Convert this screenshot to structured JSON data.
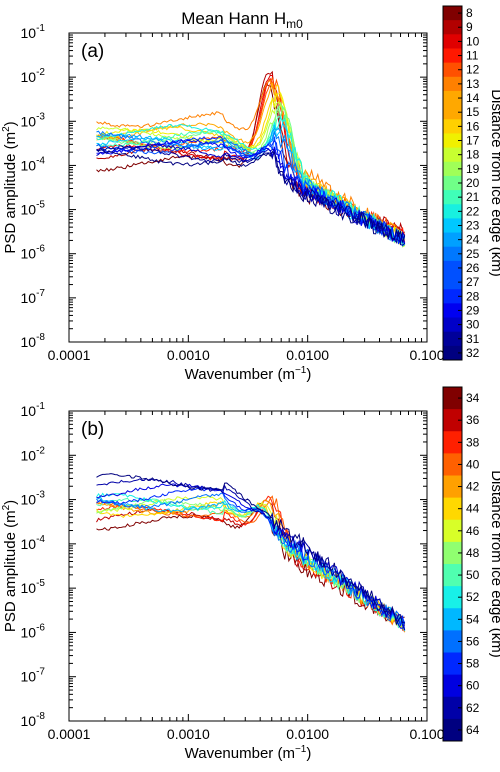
{
  "figure": {
    "title": "Mean Hann H",
    "title_sub": "m0"
  },
  "chart_data": [
    {
      "type": "line",
      "panel_label": "(a)",
      "xscale": "log",
      "yscale": "log",
      "xlim": [
        0.0001,
        0.1
      ],
      "ylim": [
        1e-08,
        0.1
      ],
      "xticks": [
        0.0001,
        0.001,
        0.01,
        0.1
      ],
      "xtick_labels": [
        "0.0001",
        "0.0010",
        "0.0100",
        "0.100"
      ],
      "yticks": [
        1e-08,
        1e-07,
        1e-06,
        1e-05,
        0.0001,
        0.001,
        0.01,
        0.1
      ],
      "ytick_labels": [
        {
          "base": "10",
          "exp": "-8"
        },
        {
          "base": "10",
          "exp": "-7"
        },
        {
          "base": "10",
          "exp": "-6"
        },
        {
          "base": "10",
          "exp": "-5"
        },
        {
          "base": "10",
          "exp": "-4"
        },
        {
          "base": "10",
          "exp": "-3"
        },
        {
          "base": "10",
          "exp": "-2"
        },
        {
          "base": "10",
          "exp": "-1"
        }
      ],
      "xlabel": "Wavenumber (m",
      "xlabel_exp": "−1",
      "xlabel_tail": ")",
      "ylabel": "PSD amplitude (m",
      "ylabel_exp": "2",
      "ylabel_tail": ")",
      "x_start": 0.00017,
      "x_end": 0.065,
      "colorbar": {
        "label": "Distance from ice edge (km)",
        "colormap": "jet",
        "ticks": [
          "8",
          "9",
          "10",
          "11",
          "12",
          "13",
          "14",
          "15",
          "16",
          "17",
          "18",
          "19",
          "20",
          "21",
          "22",
          "23",
          "24",
          "25",
          "26",
          "27",
          "28",
          "29",
          "30",
          "31",
          "32"
        ]
      },
      "series": [
        {
          "distance_km": 8,
          "color": "#800000",
          "lf": 0.00011,
          "bump": 0.007,
          "pk": 0.0046,
          "tail": 3e-06
        },
        {
          "distance_km": 9,
          "color": "#b20000",
          "lf": 0.00016,
          "bump": 0.012,
          "pk": 0.0047,
          "tail": 3e-06
        },
        {
          "distance_km": 10,
          "color": "#e00000",
          "lf": 0.0002,
          "bump": 0.011,
          "pk": 0.0049,
          "tail": 2.5e-06
        },
        {
          "distance_km": 11,
          "color": "#ff1800",
          "lf": 0.0003,
          "bump": 0.01,
          "pk": 0.005,
          "tail": 2.5e-06
        },
        {
          "distance_km": 12,
          "color": "#ff5000",
          "lf": 0.0004,
          "bump": 0.0085,
          "pk": 0.0051,
          "tail": 2.5e-06
        },
        {
          "distance_km": 13,
          "color": "#ff8000",
          "lf": 0.0011,
          "bump": 0.008,
          "pk": 0.0048,
          "tail": 2.2e-06
        },
        {
          "distance_km": 14,
          "color": "#ffa800",
          "lf": 0.0006,
          "bump": 0.006,
          "pk": 0.0052,
          "tail": 2.2e-06
        },
        {
          "distance_km": 15,
          "color": "#ffd000",
          "lf": 0.0005,
          "bump": 0.0045,
          "pk": 0.0055,
          "tail": 2e-06
        },
        {
          "distance_km": 16,
          "color": "#f0f000",
          "lf": 0.00045,
          "bump": 0.0035,
          "pk": 0.0056,
          "tail": 2e-06
        },
        {
          "distance_km": 17,
          "color": "#c8ff30",
          "lf": 0.0005,
          "bump": 0.0028,
          "pk": 0.0057,
          "tail": 2e-06
        },
        {
          "distance_km": 18,
          "color": "#a0ff58",
          "lf": 0.00035,
          "bump": 0.0022,
          "pk": 0.0058,
          "tail": 2e-06
        },
        {
          "distance_km": 19,
          "color": "#70ff88",
          "lf": 0.00045,
          "bump": 0.0016,
          "pk": 0.006,
          "tail": 2e-06
        },
        {
          "distance_km": 20,
          "color": "#40ffb8",
          "lf": 0.0004,
          "bump": 0.0012,
          "pk": 0.006,
          "tail": 2e-06
        },
        {
          "distance_km": 21,
          "color": "#18f0e0",
          "lf": 0.00055,
          "bump": 0.0009,
          "pk": 0.006,
          "tail": 2e-06
        },
        {
          "distance_km": 22,
          "color": "#00c8ff",
          "lf": 0.0003,
          "bump": 0.0007,
          "pk": 0.0058,
          "tail": 2e-06
        },
        {
          "distance_km": 23,
          "color": "#00a0ff",
          "lf": 0.00035,
          "bump": 0.0005,
          "pk": 0.0056,
          "tail": 2e-06
        },
        {
          "distance_km": 24,
          "color": "#0078ff",
          "lf": 0.0004,
          "bump": 0.0004,
          "pk": 0.0055,
          "tail": 2e-06
        },
        {
          "distance_km": 25,
          "color": "#0050ff",
          "lf": 0.00028,
          "bump": 0.00032,
          "pk": 0.005,
          "tail": 2e-06
        },
        {
          "distance_km": 26,
          "color": "#0028ff",
          "lf": 0.0003,
          "bump": 0.00028,
          "pk": 0.0048,
          "tail": 2e-06
        },
        {
          "distance_km": 27,
          "color": "#0000f0",
          "lf": 0.00025,
          "bump": 0.00025,
          "pk": 0.0045,
          "tail": 2e-06
        },
        {
          "distance_km": 28,
          "color": "#0000c8",
          "lf": 0.0002,
          "bump": 0.00022,
          "pk": 0.0045,
          "tail": 2e-06
        },
        {
          "distance_km": 29,
          "color": "#00009a",
          "lf": 0.00018,
          "bump": 0.0002,
          "pk": 0.0045,
          "tail": 2e-06
        },
        {
          "distance_km": 30,
          "color": "#000080",
          "lf": 0.00015,
          "bump": 0.00018,
          "pk": 0.0045,
          "tail": 2e-06
        }
      ]
    },
    {
      "type": "line",
      "panel_label": "(b)",
      "xscale": "log",
      "yscale": "log",
      "xlim": [
        0.0001,
        0.1
      ],
      "ylim": [
        1e-08,
        0.1
      ],
      "xticks": [
        0.0001,
        0.001,
        0.01,
        0.1
      ],
      "xtick_labels": [
        "0.0001",
        "0.0010",
        "0.0100",
        "0.100"
      ],
      "yticks": [
        1e-08,
        1e-07,
        1e-06,
        1e-05,
        0.0001,
        0.001,
        0.01,
        0.1
      ],
      "ytick_labels": [
        {
          "base": "10",
          "exp": "-8"
        },
        {
          "base": "10",
          "exp": "-7"
        },
        {
          "base": "10",
          "exp": "-6"
        },
        {
          "base": "10",
          "exp": "-5"
        },
        {
          "base": "10",
          "exp": "-4"
        },
        {
          "base": "10",
          "exp": "-3"
        },
        {
          "base": "10",
          "exp": "-2"
        },
        {
          "base": "10",
          "exp": "-1"
        }
      ],
      "xlabel": "Wavenumber (m",
      "xlabel_exp": "−1",
      "xlabel_tail": ")",
      "ylabel": "PSD amplitude (m",
      "ylabel_exp": "2",
      "ylabel_tail": ")",
      "x_start": 0.00017,
      "x_end": 0.065,
      "colorbar": {
        "label": "Distance from ice edge (km)",
        "colormap": "jet",
        "ticks": [
          "34",
          "36",
          "38",
          "40",
          "42",
          "44",
          "46",
          "48",
          "50",
          "52",
          "54",
          "56",
          "58",
          "60",
          "62",
          "64"
        ]
      },
      "series": [
        {
          "distance_km": 34,
          "color": "#800000",
          "lf": 0.0003,
          "bump": 0.0008,
          "pk": 0.004,
          "tail": 1.5e-06
        },
        {
          "distance_km": 36,
          "color": "#c00000",
          "lf": 0.0004,
          "bump": 0.001,
          "pk": 0.0045,
          "tail": 1.5e-06
        },
        {
          "distance_km": 38,
          "color": "#ff2000",
          "lf": 0.0005,
          "bump": 0.0012,
          "pk": 0.0048,
          "tail": 1.5e-06
        },
        {
          "distance_km": 40,
          "color": "#ff6000",
          "lf": 0.0006,
          "bump": 0.001,
          "pk": 0.005,
          "tail": 1.5e-06
        },
        {
          "distance_km": 42,
          "color": "#ffa000",
          "lf": 0.0007,
          "bump": 0.0009,
          "pk": 0.0045,
          "tail": 1.5e-06
        },
        {
          "distance_km": 44,
          "color": "#ffd800",
          "lf": 0.0006,
          "bump": 0.0008,
          "pk": 0.004,
          "tail": 1.5e-06
        },
        {
          "distance_km": 46,
          "color": "#d8ff28",
          "lf": 0.0008,
          "bump": 0.0008,
          "pk": 0.0042,
          "tail": 1.5e-06
        },
        {
          "distance_km": 48,
          "color": "#90ff70",
          "lf": 0.00065,
          "bump": 0.0007,
          "pk": 0.004,
          "tail": 1.5e-06
        },
        {
          "distance_km": 50,
          "color": "#50ffb0",
          "lf": 0.0007,
          "bump": 0.0006,
          "pk": 0.004,
          "tail": 1.5e-06
        },
        {
          "distance_km": 52,
          "color": "#18f0e8",
          "lf": 0.0009,
          "bump": 0.0007,
          "pk": 0.0038,
          "tail": 1.5e-06
        },
        {
          "distance_km": 54,
          "color": "#00b8ff",
          "lf": 0.0008,
          "bump": 0.0006,
          "pk": 0.0038,
          "tail": 1.5e-06
        },
        {
          "distance_km": 56,
          "color": "#0070ff",
          "lf": 0.001,
          "bump": 0.0006,
          "pk": 0.0036,
          "tail": 1.5e-06
        },
        {
          "distance_km": 58,
          "color": "#0028ff",
          "lf": 0.0012,
          "bump": 0.0006,
          "pk": 0.0036,
          "tail": 1.5e-06
        },
        {
          "distance_km": 60,
          "color": "#0000e0",
          "lf": 0.0015,
          "bump": 0.0006,
          "pk": 0.0035,
          "tail": 1.5e-06
        },
        {
          "distance_km": 62,
          "color": "#0000a8",
          "lf": 0.002,
          "bump": 0.0005,
          "pk": 0.0035,
          "tail": 1.5e-06
        },
        {
          "distance_km": 64,
          "color": "#000080",
          "lf": 0.0025,
          "bump": 0.0005,
          "pk": 0.0035,
          "tail": 1.5e-06
        }
      ]
    }
  ]
}
